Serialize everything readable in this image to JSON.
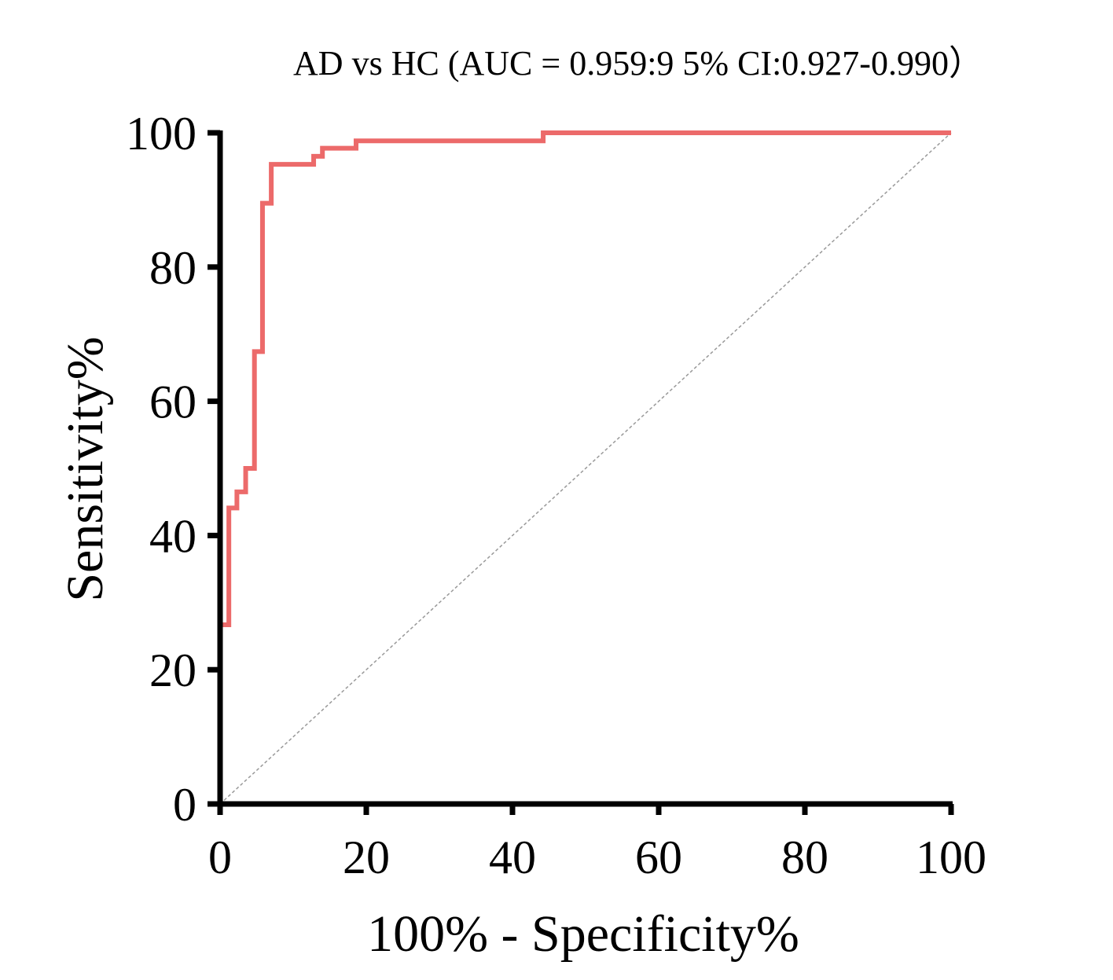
{
  "chart_data": {
    "type": "line",
    "title": "AD vs HC (AUC = 0.959:9 5% CI:0.927-0.990）",
    "xlabel": "100% - Specificity%",
    "ylabel": "Sensitivity%",
    "xlim": [
      0,
      100
    ],
    "ylim": [
      0,
      100
    ],
    "x_ticks": [
      "0",
      "20",
      "40",
      "60",
      "80",
      "100"
    ],
    "y_ticks": [
      "0",
      "20",
      "40",
      "60",
      "80",
      "100"
    ],
    "grid": false,
    "legend": "none",
    "series": [
      {
        "color": "#ec6a6a",
        "x": [
          0,
          0,
          1.2,
          1.2,
          2.3,
          2.3,
          3.5,
          3.5,
          4.7,
          4.7,
          5.8,
          5.8,
          7.0,
          7.0,
          8.1,
          8.1,
          12.8,
          12.8,
          14.0,
          14.0,
          18.6,
          18.6,
          44.2,
          44.2,
          100
        ],
        "y": [
          0,
          26.7,
          26.7,
          44.1,
          44.1,
          46.5,
          46.5,
          50.0,
          50.0,
          67.4,
          67.4,
          89.5,
          89.5,
          95.3,
          95.3,
          95.3,
          95.3,
          96.5,
          96.5,
          97.7,
          97.7,
          98.8,
          98.8,
          100,
          100
        ]
      },
      {
        "color": "#999999",
        "style": "dashed",
        "x": [
          0,
          100
        ],
        "y": [
          0,
          100
        ]
      }
    ]
  }
}
